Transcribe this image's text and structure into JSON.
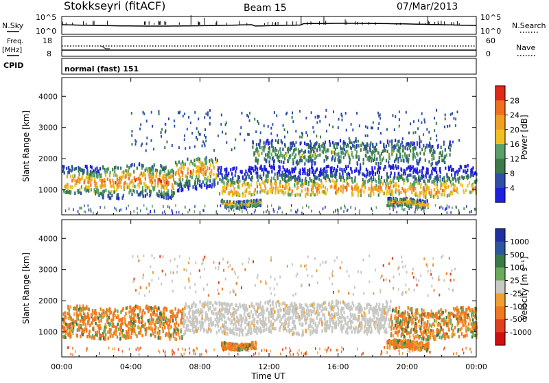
{
  "header": {
    "station": "Stokkseyri (fitACF)",
    "beam": "Beam 15",
    "date": "07/Mar/2013"
  },
  "strip_panels": {
    "nsky_label": "N.Sky",
    "nsky_ticks": [
      "10^5",
      "10^0"
    ],
    "nsearch_label": "N.Search",
    "nsearch_ticks": [
      "10^5",
      "10^0"
    ],
    "freq_label_1": "Freq.",
    "freq_label_2": "[MHz]",
    "freq_ticks": [
      "18",
      "8"
    ],
    "nave_label": "Nave",
    "nave_ticks": [
      "60",
      "0"
    ],
    "cpid_label": "CPID",
    "cpid_value": "normal (fast) 151"
  },
  "colors": {
    "power": [
      "#1f1fe0",
      "#2d4fa8",
      "#3c7a4a",
      "#5aa06a",
      "#f0c020",
      "#f0a020",
      "#f07020",
      "#e02a18",
      "#d01010"
    ],
    "velocity": [
      "#2030a0",
      "#2d56a0",
      "#3a7a48",
      "#6aaa5a",
      "#c8c8c4",
      "#f0a030",
      "#f07820",
      "#e04020",
      "#d01010"
    ],
    "ground_scatter": "#c8c8c4"
  },
  "chart_data": [
    {
      "type": "heatmap",
      "name": "Power",
      "ylabel": "Slant Range [km]",
      "ylim": [
        200,
        4600
      ],
      "yticks": [
        "1000",
        "2000",
        "3000",
        "4000"
      ],
      "colorbar_label": "Power [dB]",
      "colorbar_ticks": [
        "4",
        "8",
        "12",
        "16",
        "20",
        "24",
        "28"
      ],
      "bands": [
        {
          "t0": 0.0,
          "t1": 2.3,
          "r0": 900,
          "r1": 1800,
          "peak": 1250,
          "level": 0.6
        },
        {
          "t0": 2.3,
          "t1": 6.5,
          "r0": 800,
          "r1": 1850,
          "peak": 1350,
          "level": 0.65
        },
        {
          "t0": 6.5,
          "t1": 9.0,
          "r0": 1050,
          "r1": 2050,
          "peak": 1650,
          "level": 0.6
        },
        {
          "t0": 9.0,
          "t1": 19.0,
          "r0": 900,
          "r1": 1800,
          "peak": 1100,
          "level": 0.55
        },
        {
          "t0": 19.0,
          "t1": 24.0,
          "r0": 850,
          "r1": 1800,
          "peak": 1050,
          "level": 0.55
        },
        {
          "t0": 11.0,
          "t1": 22.5,
          "r0": 1900,
          "r1": 2600,
          "peak": 2200,
          "level": 0.25
        },
        {
          "t0": 9.2,
          "t1": 11.5,
          "r0": 520,
          "r1": 720,
          "peak": 620,
          "level": 0.5
        },
        {
          "t0": 18.8,
          "t1": 21.2,
          "r0": 500,
          "r1": 750,
          "peak": 620,
          "level": 0.6
        }
      ]
    },
    {
      "type": "heatmap",
      "name": "Velocity",
      "ylabel": "Slant Range [km]",
      "xlabel": "Time UT",
      "ylim": [
        200,
        4600
      ],
      "yticks": [
        "1000",
        "2000",
        "3000",
        "4000"
      ],
      "xticks": [
        "00:00",
        "04:00",
        "08:00",
        "12:00",
        "16:00",
        "20:00",
        "00:00"
      ],
      "colorbar_label": "Velocity [m s⁻¹]",
      "colorbar_ticks": [
        "1000",
        "500",
        "100",
        "25",
        "-25",
        "-100",
        "-500",
        "-1000"
      ],
      "bands": [
        {
          "t0": 0.0,
          "t1": 7.0,
          "r0": 850,
          "r1": 1850,
          "class": "negative"
        },
        {
          "t0": 7.0,
          "t1": 19.0,
          "r0": 1000,
          "r1": 2000,
          "class": "ground"
        },
        {
          "t0": 19.0,
          "t1": 24.0,
          "r0": 850,
          "r1": 1800,
          "class": "negative"
        },
        {
          "t0": 9.2,
          "t1": 11.2,
          "r0": 520,
          "r1": 720,
          "class": "negative"
        },
        {
          "t0": 18.8,
          "t1": 21.2,
          "r0": 500,
          "r1": 750,
          "class": "negative"
        }
      ]
    }
  ]
}
